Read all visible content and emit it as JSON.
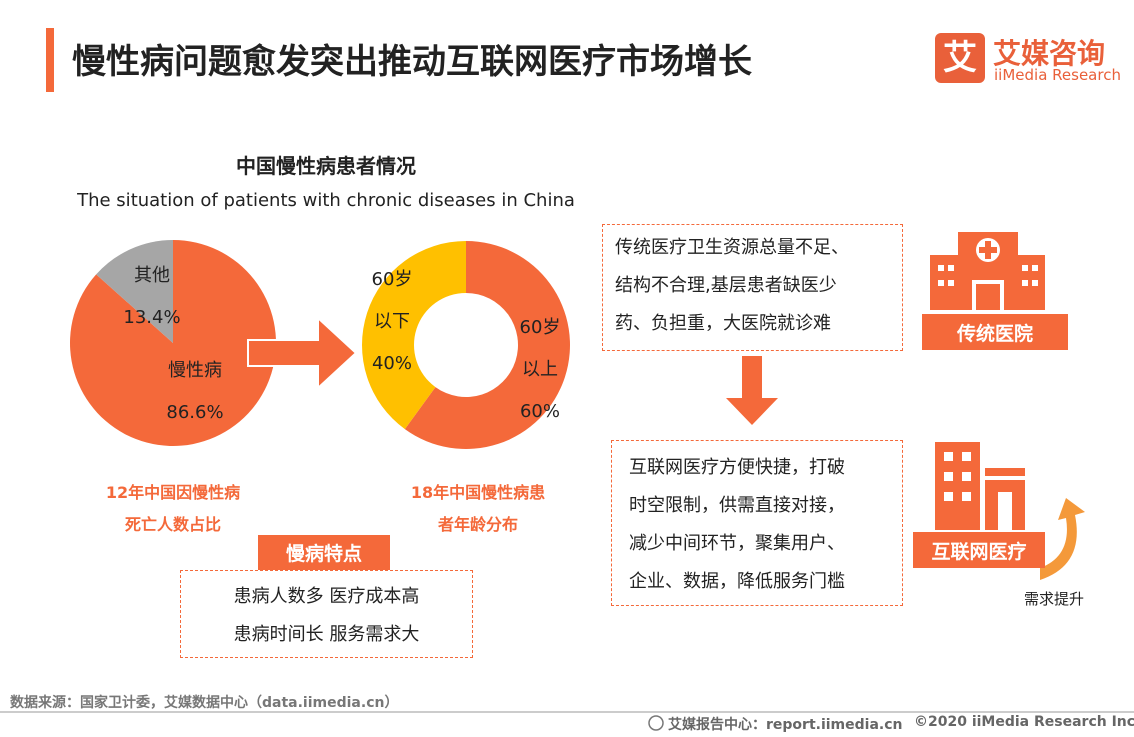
{
  "header": {
    "title": "慢性病问题愈发突出推动互联网医疗市场增长",
    "logo_mark": "艾",
    "logo_cn": "艾媒咨询",
    "logo_en": "iiMedia Research"
  },
  "left_panel": {
    "title": "中国慢性病患者情况",
    "subtitle": "The situation of patients with chronic diseases in China",
    "feature_tag": "慢病特点",
    "feature_lines": [
      "患病人数多 医疗成本高",
      "患病时间长 服务需求大"
    ]
  },
  "chart_data": [
    {
      "type": "pie",
      "caption": "12年中国因慢性病死亡人数占比",
      "categories": [
        "慢性病",
        "其他"
      ],
      "values": [
        86.6,
        13.4
      ],
      "value_labels": [
        "86.6%",
        "13.4%"
      ],
      "colors": [
        "#F4693A",
        "#A6A6A6"
      ]
    },
    {
      "type": "donut",
      "caption": "18年中国慢性病患者年龄分布",
      "categories": [
        "60岁以上",
        "60岁以下"
      ],
      "values": [
        60,
        40
      ],
      "value_labels": [
        "60%",
        "40%"
      ],
      "colors": [
        "#F4693A",
        "#FFC000"
      ]
    }
  ],
  "right_panel": {
    "problem_lines": [
      "传统医疗卫生资源总量不足、",
      "结构不合理,基层患者缺医少",
      "药、负担重，大医院就诊难"
    ],
    "hospital_tag": "传统医院",
    "solution_lines": [
      "互联网医疗方便快捷，打破",
      "时空限制，供需直接对接，",
      "减少中间环节，聚集用户、",
      "企业、数据，降低服务门槛"
    ],
    "internet_tag": "互联网医疗",
    "demand_label": "需求提升"
  },
  "footer": {
    "source": "数据来源：国家卫计委，艾媒数据中心（data.iimedia.cn）",
    "report_center": "艾媒报告中心：report.iimedia.cn",
    "copyright": "©2020 iiMedia Research Inc"
  }
}
